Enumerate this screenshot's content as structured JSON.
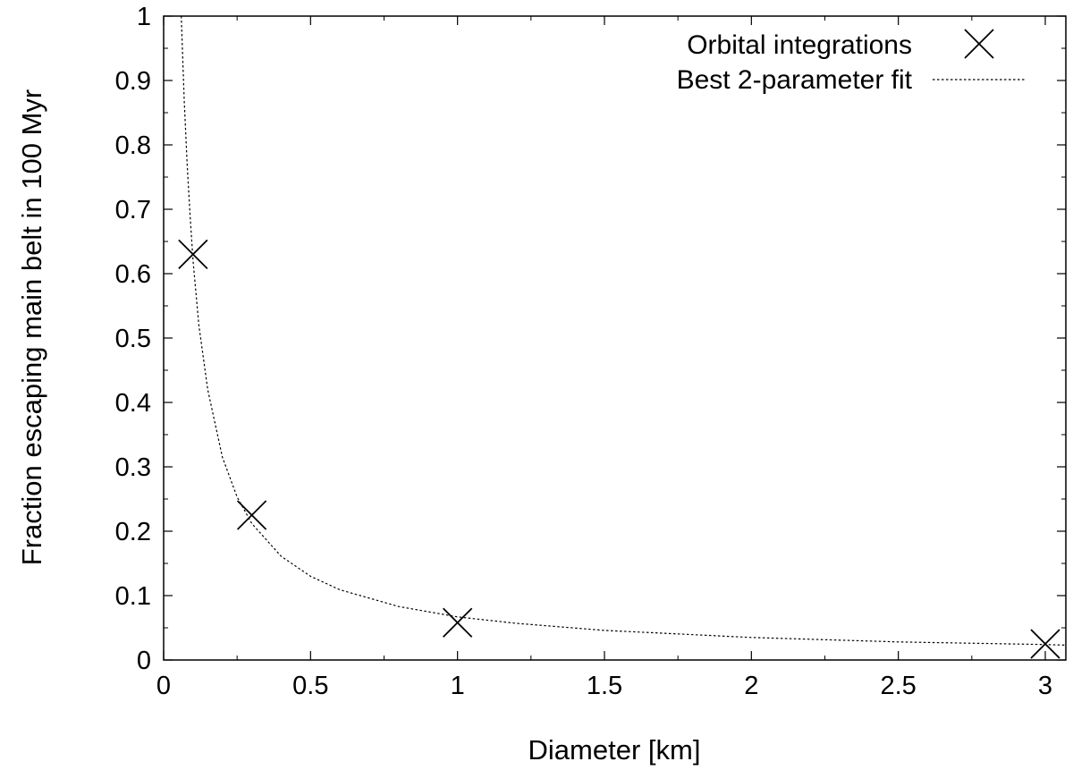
{
  "chart_data": {
    "type": "scatter",
    "title": "",
    "xlabel": "Diameter [km]",
    "ylabel": "Fraction escaping main belt in 100 Myr",
    "xlim": [
      0,
      3.07
    ],
    "ylim": [
      0,
      1
    ],
    "x_ticks": [
      {
        "value": 0,
        "label": "0"
      },
      {
        "value": 0.5,
        "label": "0.5"
      },
      {
        "value": 1,
        "label": "1"
      },
      {
        "value": 1.5,
        "label": "1.5"
      },
      {
        "value": 2,
        "label": "2"
      },
      {
        "value": 2.5,
        "label": "2.5"
      },
      {
        "value": 3,
        "label": "3"
      }
    ],
    "y_ticks": [
      {
        "value": 0,
        "label": "0"
      },
      {
        "value": 0.1,
        "label": "0.1"
      },
      {
        "value": 0.2,
        "label": "0.2"
      },
      {
        "value": 0.3,
        "label": "0.3"
      },
      {
        "value": 0.4,
        "label": "0.4"
      },
      {
        "value": 0.5,
        "label": "0.5"
      },
      {
        "value": 0.6,
        "label": "0.6"
      },
      {
        "value": 0.7,
        "label": "0.7"
      },
      {
        "value": 0.8,
        "label": "0.8"
      },
      {
        "value": 0.9,
        "label": "0.9"
      },
      {
        "value": 1,
        "label": "1"
      }
    ],
    "grid": false,
    "legend_position": "top-right",
    "series": [
      {
        "name": "Orbital integrations",
        "kind": "scatter",
        "marker": "x",
        "color": "#000000",
        "x": [
          0.1,
          0.3,
          1.0,
          3.0
        ],
        "y": [
          0.63,
          0.225,
          0.058,
          0.025
        ]
      },
      {
        "name": "Best 2-parameter fit",
        "kind": "line",
        "line_style": "dotted",
        "color": "#000000",
        "x": [
          0.06,
          0.07,
          0.08,
          0.09,
          0.1,
          0.12,
          0.15,
          0.2,
          0.25,
          0.3,
          0.4,
          0.5,
          0.6,
          0.8,
          1.0,
          1.2,
          1.5,
          2.0,
          2.5,
          3.0,
          3.07
        ],
        "y": [
          1.0,
          0.87,
          0.77,
          0.69,
          0.62,
          0.52,
          0.42,
          0.315,
          0.253,
          0.212,
          0.161,
          0.13,
          0.109,
          0.083,
          0.067,
          0.057,
          0.046,
          0.035,
          0.028,
          0.024,
          0.023
        ]
      }
    ]
  }
}
